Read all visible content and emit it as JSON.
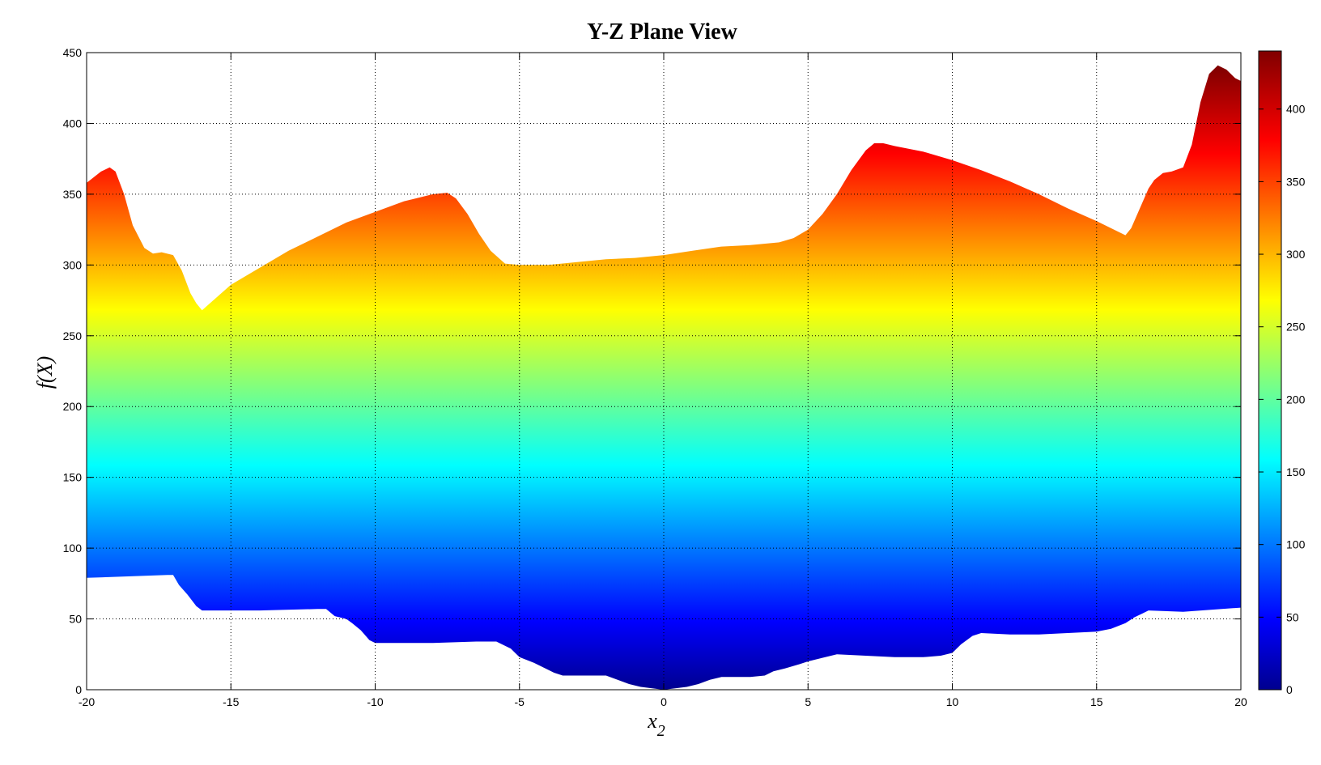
{
  "chart_data": {
    "type": "area",
    "title": "Y-Z Plane View",
    "xlabel": "x",
    "xlabel_sub": "2",
    "ylabel": "f(X)",
    "xlim": [
      -20,
      20
    ],
    "ylim": [
      0,
      450
    ],
    "x_ticks": [
      -20,
      -15,
      -10,
      -5,
      0,
      5,
      10,
      15,
      20
    ],
    "y_ticks": [
      0,
      50,
      100,
      150,
      200,
      250,
      300,
      350,
      400,
      450
    ],
    "grid": true,
    "colormap": "jet",
    "colorbar": {
      "range": [
        0,
        440
      ],
      "ticks": [
        0,
        50,
        100,
        150,
        200,
        250,
        300,
        350,
        400
      ],
      "placement": "right"
    },
    "upper_envelope": {
      "x": [
        -20,
        -19.5,
        -19.2,
        -19,
        -18.7,
        -18.4,
        -18,
        -17.7,
        -17.4,
        -17,
        -16.7,
        -16.4,
        -16.2,
        -16,
        -15,
        -13,
        -11,
        -9,
        -8,
        -7.5,
        -7.2,
        -6.8,
        -6.4,
        -6,
        -5.5,
        -5,
        -4.5,
        -4,
        -3,
        -2,
        -1,
        0,
        1,
        2,
        3,
        4,
        4.5,
        5,
        5.5,
        6,
        6.5,
        7,
        7.3,
        7.6,
        8,
        9,
        10,
        11,
        12,
        13,
        14,
        15,
        15.5,
        16,
        16.2,
        16.5,
        16.8,
        17,
        17.3,
        17.6,
        18,
        18.3,
        18.6,
        18.9,
        19.2,
        19.5,
        19.8,
        20
      ],
      "y": [
        358,
        366,
        369,
        366,
        350,
        328,
        312,
        308,
        309,
        307,
        296,
        280,
        273,
        268,
        286,
        310,
        330,
        345,
        350,
        351,
        347,
        336,
        322,
        310,
        301,
        300,
        300,
        300,
        302,
        304,
        305,
        307,
        310,
        313,
        314,
        316,
        319,
        325,
        336,
        350,
        367,
        381,
        386,
        386,
        384,
        380,
        374,
        367,
        359,
        350,
        340,
        331,
        326,
        321,
        326,
        340,
        354,
        360,
        365,
        366,
        369,
        385,
        415,
        435,
        441,
        438,
        432,
        430
      ]
    },
    "lower_envelope": {
      "x": [
        -20,
        -17.2,
        -17,
        -16.8,
        -16.5,
        -16.2,
        -16,
        -14,
        -12,
        -11.7,
        -11.4,
        -11,
        -10.8,
        -10.5,
        -10.2,
        -10,
        -8,
        -6.5,
        -5.8,
        -5.3,
        -5,
        -4.5,
        -4.2,
        -3.8,
        -3.5,
        -2,
        -1.6,
        -1.2,
        -0.8,
        -0.4,
        0,
        0.4,
        0.8,
        1.2,
        1.6,
        2,
        3,
        3.5,
        3.8,
        4.2,
        4.7,
        5,
        5.4,
        5.8,
        6,
        7,
        8,
        9,
        9.6,
        10,
        10.3,
        10.7,
        11,
        12,
        13,
        14,
        15,
        15.5,
        16,
        16.3,
        16.6,
        16.8,
        18,
        20
      ],
      "y": [
        79,
        81,
        81,
        74,
        67,
        59,
        56,
        56,
        57,
        57,
        52,
        50,
        47,
        42,
        35,
        33,
        33,
        34,
        34,
        29,
        23,
        19,
        16,
        12,
        10,
        10,
        7,
        4,
        2,
        1,
        0,
        1,
        2,
        4,
        7,
        9,
        9,
        10,
        13,
        15,
        18,
        20,
        22,
        24,
        25,
        24,
        23,
        23,
        24,
        26,
        32,
        38,
        40,
        39,
        39,
        40,
        41,
        43,
        47,
        51,
        54,
        56,
        55,
        58
      ]
    }
  }
}
